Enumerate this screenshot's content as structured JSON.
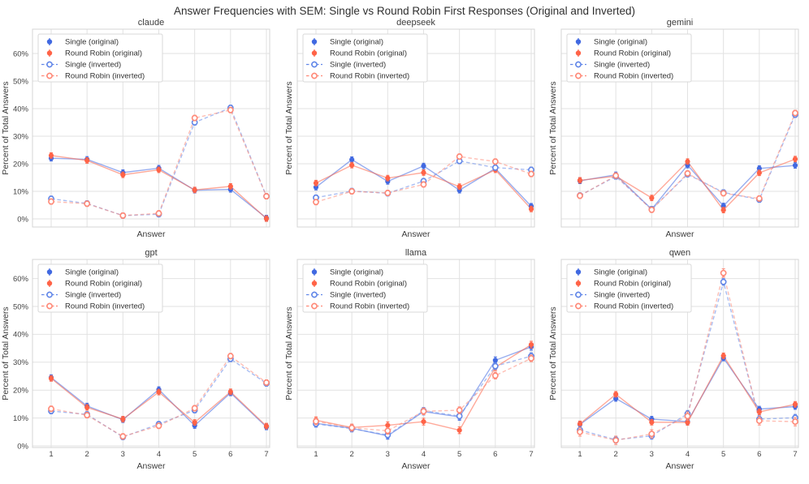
{
  "figure": {
    "title": "Answer Frequencies with SEM: Single vs Round Robin First Responses (Original and Inverted)",
    "xlabel": "Answer",
    "ylabel": "Percent of Total Answers",
    "x_ticks": [
      "1",
      "2",
      "3",
      "4",
      "5",
      "6",
      "7"
    ],
    "y_ticks": [
      "0%",
      "10%",
      "20%",
      "30%",
      "40%",
      "50%",
      "60%"
    ],
    "colors": {
      "single_original": "#4169E1",
      "round_robin_original": "#FF6347",
      "single_inverted": "#6287E8",
      "round_robin_inverted": "#FF8977",
      "grid": "#e2e2e2",
      "spine": "#d4d4d4",
      "text": "#3b3b3b"
    },
    "legend_items": [
      {
        "label": "Single (original)",
        "style": "solid",
        "color": "#4169E1"
      },
      {
        "label": "Round Robin (original)",
        "style": "solid",
        "color": "#FF6347"
      },
      {
        "label": "Single (inverted)",
        "style": "dashed",
        "color": "#6287E8"
      },
      {
        "label": "Round Robin (inverted)",
        "style": "dashed",
        "color": "#FF8977"
      }
    ]
  },
  "chart_data": [
    {
      "type": "line",
      "title": "claude",
      "xlabel": "Answer",
      "ylabel": "Percent of Total Answers",
      "x": [
        1,
        2,
        3,
        4,
        5,
        6,
        7
      ],
      "ylim": [
        -3,
        68
      ],
      "grid": true,
      "legend_position": "upper left",
      "series": [
        {
          "name": "Single (original)",
          "style": "solid",
          "color": "#4169E1",
          "sem": 1.0,
          "values": [
            22.0,
            21.6,
            16.8,
            18.4,
            10.4,
            10.7,
            0.3
          ]
        },
        {
          "name": "Round Robin (original)",
          "style": "solid",
          "color": "#FF6347",
          "sem": 1.0,
          "values": [
            23.0,
            21.2,
            16.0,
            17.8,
            10.5,
            11.8,
            0.1
          ]
        },
        {
          "name": "Single (inverted)",
          "style": "dashed",
          "color": "#6287E8",
          "sem": 1.0,
          "values": [
            7.3,
            5.6,
            1.2,
            1.7,
            35.0,
            40.3,
            8.2
          ]
        },
        {
          "name": "Round Robin (inverted)",
          "style": "dashed",
          "color": "#FF8977",
          "sem": 1.0,
          "values": [
            6.3,
            5.5,
            1.2,
            2.0,
            36.6,
            39.5,
            8.2
          ]
        }
      ]
    },
    {
      "type": "line",
      "title": "deepseek",
      "xlabel": "Answer",
      "ylabel": "Percent of Total Answers",
      "x": [
        1,
        2,
        3,
        4,
        5,
        6,
        7
      ],
      "ylim": [
        -3,
        68
      ],
      "grid": true,
      "legend_position": "upper left",
      "series": [
        {
          "name": "Single (original)",
          "style": "solid",
          "color": "#4169E1",
          "sem": 1.0,
          "values": [
            11.5,
            21.5,
            13.6,
            19.2,
            10.4,
            18.3,
            4.6
          ]
        },
        {
          "name": "Round Robin (original)",
          "style": "solid",
          "color": "#FF6347",
          "sem": 1.0,
          "values": [
            13.0,
            19.5,
            14.8,
            16.8,
            11.7,
            17.8,
            3.6
          ]
        },
        {
          "name": "Single (inverted)",
          "style": "dashed",
          "color": "#6287E8",
          "sem": 1.0,
          "values": [
            7.7,
            10.1,
            9.3,
            13.7,
            21.0,
            18.6,
            17.8
          ]
        },
        {
          "name": "Round Robin (inverted)",
          "style": "dashed",
          "color": "#FF8977",
          "sem": 1.0,
          "values": [
            6.1,
            10.0,
            9.4,
            12.5,
            22.6,
            20.8,
            16.3
          ]
        }
      ]
    },
    {
      "type": "line",
      "title": "gemini",
      "xlabel": "Answer",
      "ylabel": "Percent of Total Answers",
      "x": [
        1,
        2,
        3,
        4,
        5,
        6,
        7
      ],
      "ylim": [
        -3,
        68
      ],
      "grid": true,
      "legend_position": "upper left",
      "series": [
        {
          "name": "Single (original)",
          "style": "solid",
          "color": "#4169E1",
          "sem": 1.0,
          "values": [
            13.8,
            16.0,
            3.5,
            19.5,
            4.7,
            18.3,
            19.4
          ]
        },
        {
          "name": "Round Robin (original)",
          "style": "solid",
          "color": "#FF6347",
          "sem": 1.0,
          "values": [
            14.0,
            15.5,
            7.6,
            20.8,
            3.2,
            16.7,
            21.7
          ]
        },
        {
          "name": "Single (inverted)",
          "style": "dashed",
          "color": "#6287E8",
          "sem": 1.0,
          "values": [
            8.5,
            15.4,
            3.5,
            16.2,
            9.6,
            7.0,
            37.8
          ]
        },
        {
          "name": "Round Robin (inverted)",
          "style": "dashed",
          "color": "#FF8977",
          "sem": 1.0,
          "values": [
            8.4,
            15.7,
            3.3,
            16.5,
            9.3,
            7.4,
            38.4
          ]
        }
      ]
    },
    {
      "type": "line",
      "title": "gpt",
      "xlabel": "Answer",
      "ylabel": "Percent of Total Answers",
      "x": [
        1,
        2,
        3,
        4,
        5,
        6,
        7
      ],
      "ylim": [
        -3,
        67
      ],
      "grid": true,
      "legend_position": "upper left",
      "series": [
        {
          "name": "Single (original)",
          "style": "solid",
          "color": "#4169E1",
          "sem": 1.0,
          "values": [
            24.5,
            14.3,
            9.4,
            20.2,
            7.3,
            19.0,
            6.8
          ]
        },
        {
          "name": "Round Robin (original)",
          "style": "solid",
          "color": "#FF6347",
          "sem": 1.0,
          "values": [
            24.2,
            13.8,
            9.6,
            19.3,
            8.4,
            19.4,
            7.1
          ]
        },
        {
          "name": "Single (inverted)",
          "style": "dashed",
          "color": "#6287E8",
          "sem": 1.0,
          "values": [
            12.5,
            11.3,
            3.2,
            7.8,
            12.8,
            31.2,
            22.4
          ]
        },
        {
          "name": "Round Robin (inverted)",
          "style": "dashed",
          "color": "#FF8977",
          "sem": 1.0,
          "values": [
            13.3,
            11.0,
            3.4,
            7.2,
            13.5,
            32.2,
            22.7
          ]
        }
      ]
    },
    {
      "type": "line",
      "title": "llama",
      "xlabel": "Answer",
      "ylabel": "Percent of Total Answers",
      "x": [
        1,
        2,
        3,
        4,
        5,
        6,
        7
      ],
      "ylim": [
        -3,
        67
      ],
      "grid": true,
      "legend_position": "upper left",
      "series": [
        {
          "name": "Single (original)",
          "style": "solid",
          "color": "#4169E1",
          "sem": 1.2,
          "values": [
            8.1,
            6.3,
            3.6,
            12.3,
            10.4,
            30.7,
            35.5
          ]
        },
        {
          "name": "Round Robin (original)",
          "style": "solid",
          "color": "#FF6347",
          "sem": 1.2,
          "values": [
            9.2,
            6.6,
            7.4,
            8.7,
            5.6,
            28.2,
            36.3
          ]
        },
        {
          "name": "Single (inverted)",
          "style": "dashed",
          "color": "#6287E8",
          "sem": 1.2,
          "values": [
            7.9,
            6.2,
            3.9,
            12.6,
            10.7,
            28.6,
            32.2
          ]
        },
        {
          "name": "Round Robin (inverted)",
          "style": "dashed",
          "color": "#FF8977",
          "sem": 1.2,
          "values": [
            8.8,
            6.5,
            5.4,
            12.4,
            12.8,
            25.2,
            31.4
          ]
        }
      ]
    },
    {
      "type": "line",
      "title": "qwen",
      "xlabel": "Answer",
      "ylabel": "Percent of Total Answers",
      "x": [
        1,
        2,
        3,
        4,
        5,
        6,
        7
      ],
      "ylim": [
        -3,
        67
      ],
      "grid": true,
      "legend_position": "upper left",
      "series": [
        {
          "name": "Single (original)",
          "style": "solid",
          "color": "#4169E1",
          "sem": 1.0,
          "values": [
            7.7,
            17.0,
            9.6,
            8.7,
            31.5,
            13.2,
            14.1
          ]
        },
        {
          "name": "Round Robin (original)",
          "style": "solid",
          "color": "#FF6347",
          "sem": 1.0,
          "values": [
            7.9,
            18.5,
            8.5,
            8.4,
            32.3,
            12.2,
            14.9
          ]
        },
        {
          "name": "Single (inverted)",
          "style": "dashed",
          "color": "#6287E8",
          "sem": 1.2,
          "values": [
            5.7,
            2.2,
            3.6,
            11.5,
            58.8,
            9.6,
            10.1
          ]
        },
        {
          "name": "Round Robin (inverted)",
          "style": "dashed",
          "color": "#FF8977",
          "sem": 1.5,
          "values": [
            5.0,
            2.0,
            4.3,
            10.7,
            62.0,
            9.0,
            8.7
          ]
        }
      ]
    }
  ]
}
